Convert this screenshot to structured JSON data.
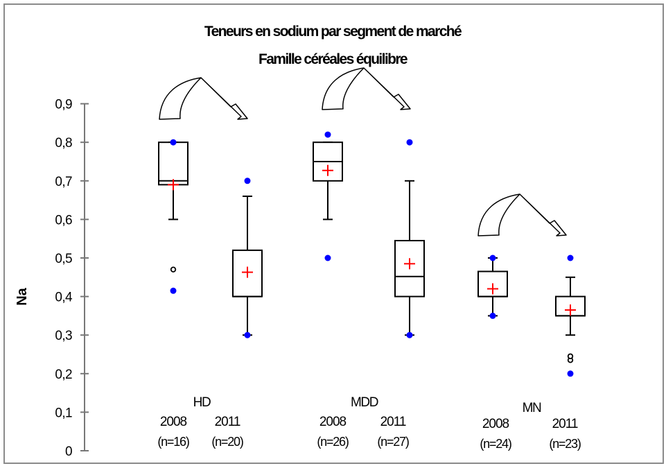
{
  "chart_data": {
    "type": "boxplot",
    "title": "Teneurs en sodium par segment de marché",
    "subtitle": "Famille céréales équilibre",
    "ylabel": "Na",
    "ylim": [
      0,
      0.9
    ],
    "ytick_labels": [
      "0",
      "0,1",
      "0,2",
      "0,3",
      "0,4",
      "0,5",
      "0,6",
      "0,7",
      "0,8",
      "0,9"
    ],
    "groups": [
      {
        "name": "HD",
        "boxes": [
          {
            "year": "2008",
            "n_label": "(n=16)",
            "min": 0.6,
            "q1": 0.69,
            "median": 0.7,
            "q3": 0.8,
            "max": 0.8,
            "mean": 0.69,
            "extremes": [
              0.415,
              0.8
            ],
            "outliers": [
              0.47
            ]
          },
          {
            "year": "2011",
            "n_label": "(n=20)",
            "min": 0.3,
            "q1": 0.4,
            "median": 0.4,
            "q3": 0.52,
            "max": 0.66,
            "mean": 0.463,
            "extremes": [
              0.3,
              0.7
            ],
            "outliers": []
          }
        ]
      },
      {
        "name": "MDD",
        "boxes": [
          {
            "year": "2008",
            "n_label": "(n=26)",
            "min": 0.6,
            "q1": 0.7,
            "median": 0.75,
            "q3": 0.8,
            "max": 0.8,
            "mean": 0.727,
            "extremes": [
              0.5,
              0.82
            ],
            "outliers": []
          },
          {
            "year": "2011",
            "n_label": "(n=27)",
            "min": 0.3,
            "q1": 0.4,
            "median": 0.452,
            "q3": 0.545,
            "max": 0.7,
            "mean": 0.485,
            "extremes": [
              0.3,
              0.8
            ],
            "outliers": []
          }
        ]
      },
      {
        "name": "MN",
        "boxes": [
          {
            "year": "2008",
            "n_label": "(n=24)",
            "min": 0.35,
            "q1": 0.4,
            "median": 0.4,
            "q3": 0.465,
            "max": 0.5,
            "mean": 0.42,
            "extremes": [
              0.35,
              0.5
            ],
            "outliers": []
          },
          {
            "year": "2011",
            "n_label": "(n=23)",
            "min": 0.3,
            "q1": 0.35,
            "median": 0.35,
            "q3": 0.4,
            "max": 0.45,
            "mean": 0.365,
            "extremes": [
              0.2,
              0.5
            ],
            "outliers": [
              0.235,
              0.245
            ]
          }
        ]
      }
    ],
    "mean_marker_color": "#ff0000",
    "extreme_point_color": "#0000ff",
    "outlier_marker": "open-circle",
    "decoration": "curved-arrow-icon above each group, pointing from 2008 to 2011",
    "grid": false,
    "legend": "none"
  }
}
